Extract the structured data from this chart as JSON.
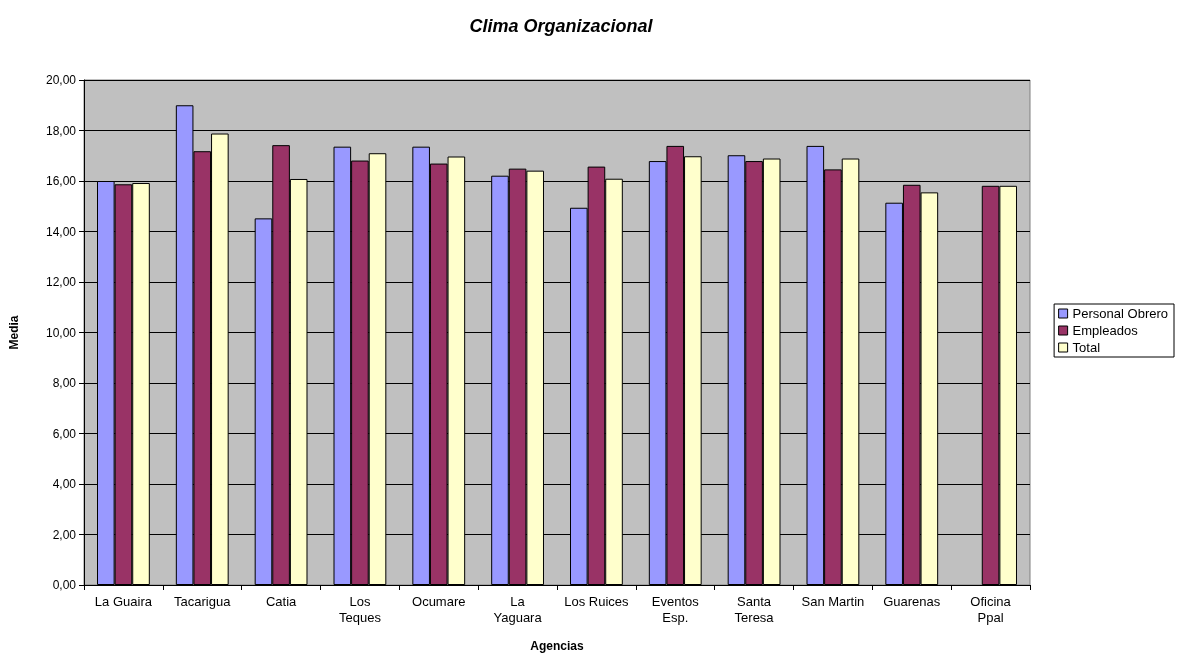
{
  "chart_data": {
    "type": "bar",
    "title": "Clima Organizacional",
    "xlabel": "Agencias",
    "ylabel": "Media",
    "categories": [
      "La Guaira",
      "Tacarigua",
      "Catia",
      "Los\nTeques",
      "Ocumare",
      "La\nYaguara",
      "Los Ruices",
      "Eventos\nEsp.",
      "Santa\nTeresa",
      "San Martin",
      "Guarenas",
      "Oficina\nPpal"
    ],
    "series": [
      {
        "name": "Personal Obrero",
        "color": "#9999ff",
        "values": [
          16.0,
          19.0,
          14.52,
          17.36,
          17.36,
          16.21,
          14.94,
          16.79,
          17.02,
          17.39,
          15.14,
          null
        ]
      },
      {
        "name": "Empleados",
        "color": "#993366",
        "values": [
          15.87,
          17.18,
          17.42,
          16.81,
          16.69,
          16.49,
          16.57,
          17.39,
          16.79,
          16.46,
          15.85,
          15.81
        ]
      },
      {
        "name": "Total",
        "color": "#ffffcc",
        "values": [
          15.92,
          17.88,
          16.08,
          17.1,
          16.97,
          16.41,
          16.09,
          16.98,
          16.89,
          16.89,
          15.55,
          15.81
        ]
      }
    ],
    "ylim": [
      0,
      20
    ],
    "yticks": [
      {
        "value": 0,
        "label": "0,00"
      },
      {
        "value": 2,
        "label": "2,00"
      },
      {
        "value": 4,
        "label": "4,00"
      },
      {
        "value": 6,
        "label": "6,00"
      },
      {
        "value": 8,
        "label": "8,00"
      },
      {
        "value": 10,
        "label": "10,00"
      },
      {
        "value": 12,
        "label": "12,00"
      },
      {
        "value": 14,
        "label": "14,00"
      },
      {
        "value": 16,
        "label": "16,00"
      },
      {
        "value": 18,
        "label": "18,00"
      },
      {
        "value": 20,
        "label": "20,00"
      }
    ],
    "grid": "y",
    "legend": "right"
  }
}
